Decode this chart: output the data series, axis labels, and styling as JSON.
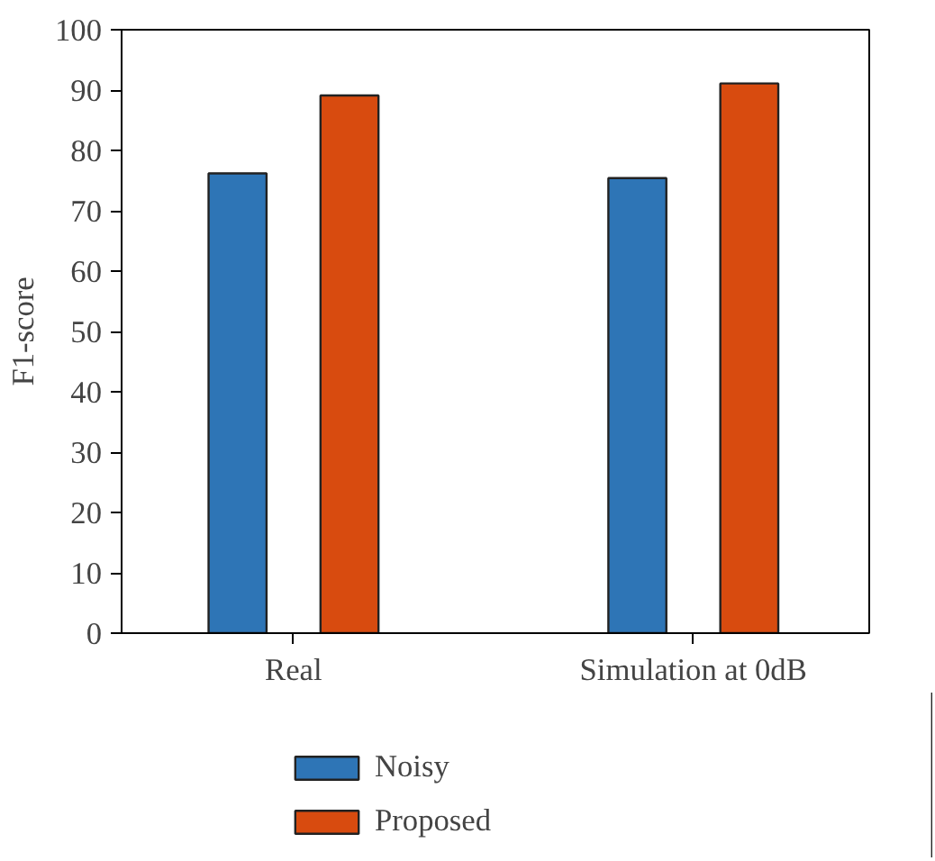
{
  "chart_data": {
    "type": "bar",
    "ylabel": "F1-score",
    "categories": [
      "Real",
      "Simulation at 0dB"
    ],
    "series": [
      {
        "name": "Noisy",
        "color": "#2e75b6",
        "values": [
          76.2,
          75.4
        ]
      },
      {
        "name": "Proposed",
        "color": "#d84b0f",
        "values": [
          89.1,
          91.1
        ]
      }
    ],
    "ylim": [
      0,
      100
    ],
    "yticks": [
      0,
      10,
      20,
      30,
      40,
      50,
      60,
      70,
      80,
      90,
      100
    ],
    "grid": false,
    "legend": "bottom"
  }
}
